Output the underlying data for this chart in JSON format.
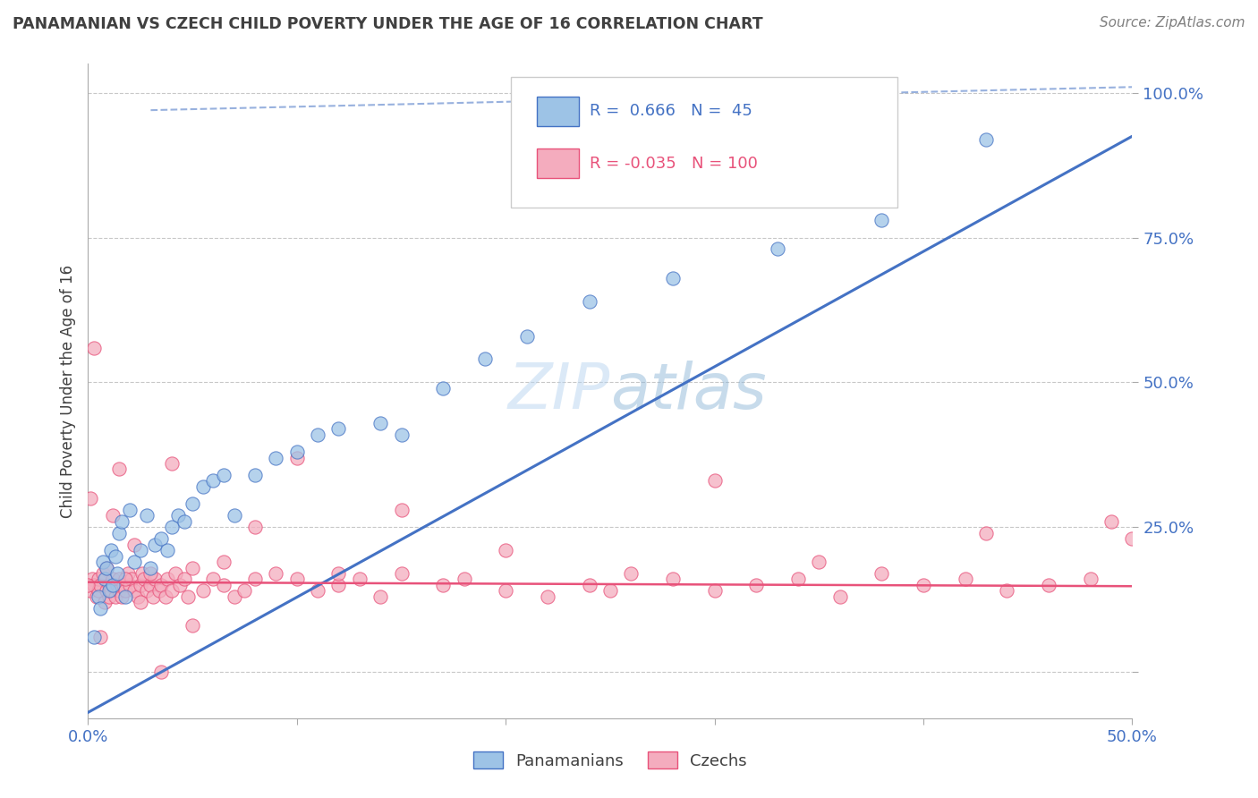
{
  "title": "PANAMANIAN VS CZECH CHILD POVERTY UNDER THE AGE OF 16 CORRELATION CHART",
  "source": "Source: ZipAtlas.com",
  "xlim": [
    0.0,
    0.5
  ],
  "ylim": [
    -0.08,
    1.05
  ],
  "ylabel": "Child Poverty Under the Age of 16",
  "pan_color": "#4472c4",
  "pan_color_fill": "#9dc3e6",
  "czech_color": "#e8527a",
  "czech_color_fill": "#f4acbe",
  "bg_color": "#ffffff",
  "grid_color": "#c8c8c8",
  "axis_label_color": "#4472c4",
  "title_color": "#404040",
  "source_color": "#808080",
  "pan_line_x": [
    0.0,
    0.5
  ],
  "pan_line_y": [
    -0.07,
    0.925
  ],
  "czech_line_x": [
    0.0,
    0.5
  ],
  "czech_line_y": [
    0.155,
    0.148
  ],
  "ref_line_x": [
    0.03,
    0.5
  ],
  "ref_line_y": [
    0.97,
    1.01
  ],
  "pan_scatter_x": [
    0.003,
    0.005,
    0.006,
    0.007,
    0.008,
    0.009,
    0.01,
    0.011,
    0.012,
    0.013,
    0.014,
    0.015,
    0.016,
    0.018,
    0.02,
    0.022,
    0.025,
    0.028,
    0.03,
    0.032,
    0.035,
    0.038,
    0.04,
    0.043,
    0.046,
    0.05,
    0.055,
    0.06,
    0.065,
    0.07,
    0.08,
    0.09,
    0.1,
    0.11,
    0.12,
    0.14,
    0.15,
    0.17,
    0.19,
    0.21,
    0.24,
    0.28,
    0.33,
    0.38,
    0.43
  ],
  "pan_scatter_y": [
    0.06,
    0.13,
    0.11,
    0.19,
    0.16,
    0.18,
    0.14,
    0.21,
    0.15,
    0.2,
    0.17,
    0.24,
    0.26,
    0.13,
    0.28,
    0.19,
    0.21,
    0.27,
    0.18,
    0.22,
    0.23,
    0.21,
    0.25,
    0.27,
    0.26,
    0.29,
    0.32,
    0.33,
    0.34,
    0.27,
    0.34,
    0.37,
    0.38,
    0.41,
    0.42,
    0.43,
    0.41,
    0.49,
    0.54,
    0.58,
    0.64,
    0.68,
    0.73,
    0.78,
    0.92
  ],
  "czech_scatter_x": [
    0.0,
    0.001,
    0.002,
    0.003,
    0.004,
    0.005,
    0.005,
    0.006,
    0.007,
    0.008,
    0.009,
    0.01,
    0.01,
    0.011,
    0.012,
    0.013,
    0.014,
    0.015,
    0.015,
    0.016,
    0.017,
    0.018,
    0.019,
    0.02,
    0.021,
    0.022,
    0.024,
    0.025,
    0.026,
    0.027,
    0.028,
    0.03,
    0.031,
    0.032,
    0.034,
    0.035,
    0.037,
    0.038,
    0.04,
    0.042,
    0.044,
    0.046,
    0.048,
    0.05,
    0.055,
    0.06,
    0.065,
    0.07,
    0.075,
    0.08,
    0.09,
    0.1,
    0.11,
    0.12,
    0.13,
    0.14,
    0.15,
    0.17,
    0.18,
    0.2,
    0.22,
    0.24,
    0.26,
    0.28,
    0.3,
    0.32,
    0.34,
    0.36,
    0.38,
    0.4,
    0.42,
    0.44,
    0.46,
    0.48,
    0.5,
    0.001,
    0.003,
    0.006,
    0.009,
    0.012,
    0.015,
    0.018,
    0.022,
    0.025,
    0.03,
    0.035,
    0.04,
    0.05,
    0.065,
    0.08,
    0.1,
    0.12,
    0.15,
    0.2,
    0.25,
    0.3,
    0.35,
    0.43,
    0.49,
    0.0
  ],
  "czech_scatter_y": [
    0.15,
    0.14,
    0.16,
    0.15,
    0.13,
    0.14,
    0.16,
    0.15,
    0.17,
    0.12,
    0.14,
    0.13,
    0.15,
    0.14,
    0.16,
    0.13,
    0.15,
    0.14,
    0.16,
    0.13,
    0.15,
    0.14,
    0.17,
    0.15,
    0.16,
    0.14,
    0.13,
    0.15,
    0.17,
    0.16,
    0.14,
    0.15,
    0.13,
    0.16,
    0.14,
    0.15,
    0.13,
    0.16,
    0.14,
    0.17,
    0.15,
    0.16,
    0.13,
    0.18,
    0.14,
    0.16,
    0.15,
    0.13,
    0.14,
    0.16,
    0.17,
    0.16,
    0.14,
    0.15,
    0.16,
    0.13,
    0.17,
    0.15,
    0.16,
    0.14,
    0.13,
    0.15,
    0.17,
    0.16,
    0.14,
    0.15,
    0.16,
    0.13,
    0.17,
    0.15,
    0.16,
    0.14,
    0.15,
    0.16,
    0.23,
    0.3,
    0.56,
    0.06,
    0.18,
    0.27,
    0.35,
    0.16,
    0.22,
    0.12,
    0.17,
    0.0,
    0.36,
    0.08,
    0.19,
    0.25,
    0.37,
    0.17,
    0.28,
    0.21,
    0.14,
    0.33,
    0.19,
    0.24,
    0.26,
    0.15
  ],
  "ytick_positions": [
    0.0,
    0.25,
    0.5,
    0.75,
    1.0
  ],
  "ytick_labels": [
    "",
    "25.0%",
    "50.0%",
    "75.0%",
    "100.0%"
  ],
  "xtick_positions": [
    0.0,
    0.1,
    0.2,
    0.3,
    0.4,
    0.5
  ],
  "xtick_labels": [
    "0.0%",
    "",
    "",
    "",
    "",
    "50.0%"
  ]
}
